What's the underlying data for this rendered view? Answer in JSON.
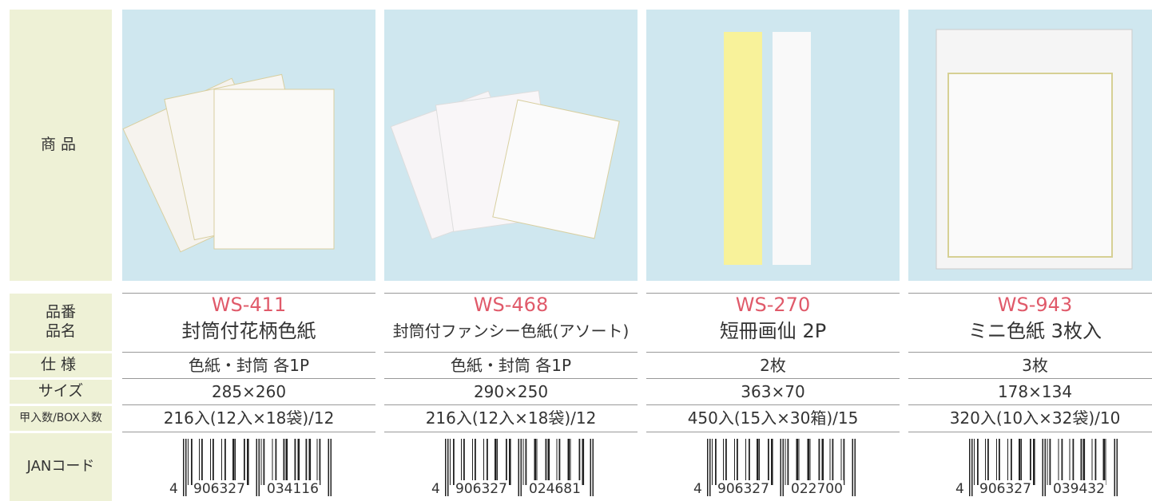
{
  "labels": {
    "product": "商品",
    "code": "品番",
    "name": "品名",
    "spec": "仕様",
    "size": "サイズ",
    "qty": "甲入数/BOX入数",
    "jan": "JANコード"
  },
  "products": [
    {
      "code": "WS-411",
      "name": "封筒付花柄色紙",
      "spec": "色紙・封筒 各1P",
      "size": "285×260",
      "qty": "216入(12入×18袋)/12",
      "jan": {
        "lead": "4",
        "left": "906327",
        "right": "034116"
      }
    },
    {
      "code": "WS-468",
      "name": "封筒付ファンシー色紙(アソート)",
      "spec": "色紙・封筒 各1P",
      "size": "290×250",
      "qty": "216入(12入×18袋)/12",
      "jan": {
        "lead": "4",
        "left": "906327",
        "right": "024681"
      }
    },
    {
      "code": "WS-270",
      "name": "短冊画仙 2P",
      "spec": "2枚",
      "size": "363×70",
      "qty": "450入(15入×30箱)/15",
      "jan": {
        "lead": "4",
        "left": "906327",
        "right": "022700"
      }
    },
    {
      "code": "WS-943",
      "name": "ミニ色紙 3枚入",
      "spec": "3枚",
      "size": "178×134",
      "qty": "320入(10入×32袋)/10",
      "jan": {
        "lead": "4",
        "left": "906327",
        "right": "039432"
      }
    }
  ]
}
